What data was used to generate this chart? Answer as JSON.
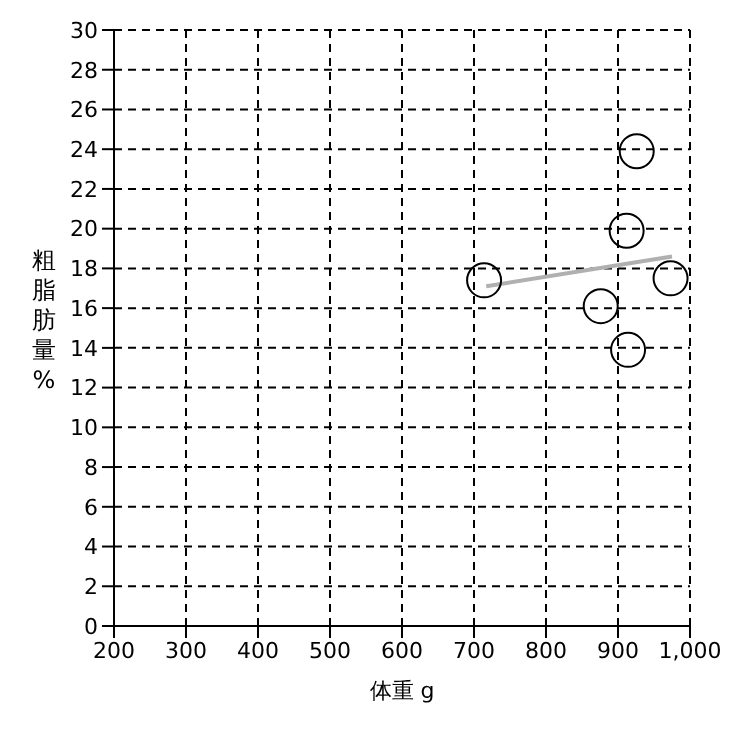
{
  "chart_data": {
    "type": "scatter",
    "xlabel": "体重 g",
    "ylabel": "粗脂肪量%",
    "xlim": [
      200,
      1000
    ],
    "xticks": [
      200,
      300,
      400,
      500,
      600,
      700,
      800,
      900,
      {
        "value": 1000,
        "label": "1,000"
      }
    ],
    "ylim": [
      0,
      30
    ],
    "yticks": [
      0,
      2,
      4,
      6,
      8,
      10,
      12,
      14,
      16,
      18,
      20,
      22,
      24,
      26,
      28,
      30
    ],
    "grid": true,
    "series": [
      {
        "marker": "circle",
        "color": "#000000",
        "x": [
          714,
          926,
          912,
          973,
          876,
          914
        ],
        "values": [
          17.4,
          23.9,
          19.9,
          17.5,
          16.1,
          13.9
        ]
      },
      {
        "type": "line",
        "marker": "none",
        "color": "#b0b0b0",
        "x": [
          717,
          975
        ],
        "values": [
          17.1,
          18.6
        ]
      }
    ]
  }
}
